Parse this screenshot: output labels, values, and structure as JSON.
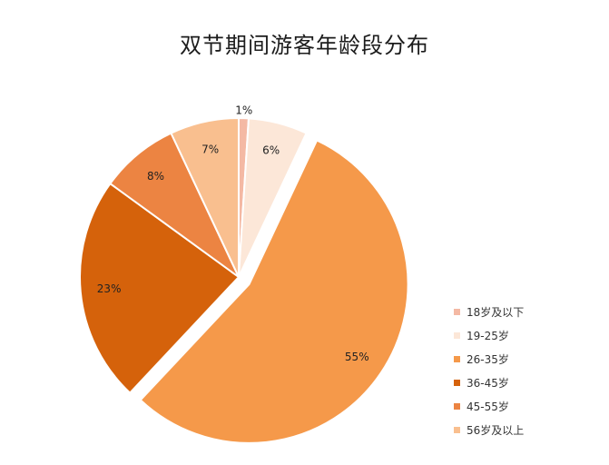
{
  "chart_data": {
    "type": "pie",
    "title": "双节期间游客年龄段分布",
    "categories": [
      "18岁及以下",
      "19-25岁",
      "26-35岁",
      "36-45岁",
      "45-55岁",
      "56岁及以上"
    ],
    "values": [
      1,
      6,
      55,
      23,
      8,
      7
    ],
    "data_labels": [
      "1%",
      "6%",
      "55%",
      "23%",
      "8%",
      "7%"
    ],
    "colors": [
      "#F4B9A4",
      "#FCE7D8",
      "#F5994A",
      "#D5620B",
      "#EC8442",
      "#F9BF8F"
    ],
    "exploded": [
      false,
      false,
      true,
      false,
      false,
      false
    ],
    "legend_position": "bottom-right",
    "start_angle_deg": 0,
    "direction": "clockwise"
  }
}
